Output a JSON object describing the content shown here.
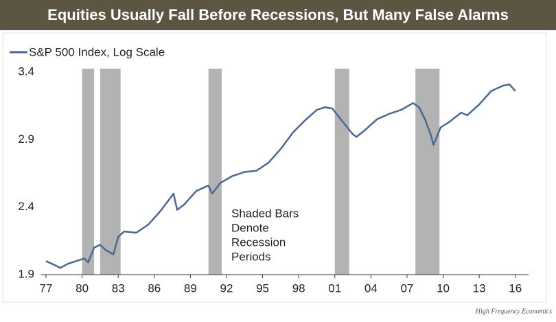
{
  "chart_data": {
    "type": "line",
    "title": "Equities Usually Fall Before Recessions, But Many False Alarms",
    "source": "High Frequency Economics",
    "annotation": [
      "Shaded Bars",
      "Denote",
      "Recession",
      "Periods"
    ],
    "recessions": [
      [
        1980.0,
        1981.0
      ],
      [
        1981.5,
        1983.2
      ],
      [
        1990.5,
        1991.6
      ],
      [
        2001.0,
        2002.2
      ],
      [
        2007.7,
        2009.7
      ]
    ],
    "recession_color": "#b3b3b3",
    "x": [
      1977.0,
      1977.5,
      1978.2,
      1978.8,
      1979.5,
      1980.2,
      1980.5,
      1981.0,
      1981.5,
      1982.0,
      1982.6,
      1983.0,
      1983.5,
      1984.5,
      1985.5,
      1986.5,
      1987.6,
      1987.9,
      1988.5,
      1989.5,
      1990.5,
      1990.8,
      1991.5,
      1992.5,
      1993.5,
      1994.5,
      1995.5,
      1996.5,
      1997.5,
      1998.5,
      1999.5,
      2000.2,
      2000.8,
      2001.5,
      2002.5,
      2002.8,
      2003.5,
      2004.5,
      2005.5,
      2006.5,
      2007.5,
      2008.0,
      2008.5,
      2009.0,
      2009.2,
      2009.8,
      2010.5,
      2011.5,
      2012.0,
      2013.0,
      2014.0,
      2015.0,
      2015.5,
      2016.0
    ],
    "series": [
      {
        "name": "S&P 500 Index, Log Scale",
        "color": "#4a6890",
        "values": [
          2.0,
          1.98,
          1.95,
          1.98,
          2.0,
          2.02,
          1.99,
          2.1,
          2.12,
          2.08,
          2.05,
          2.18,
          2.22,
          2.21,
          2.27,
          2.37,
          2.5,
          2.38,
          2.42,
          2.52,
          2.56,
          2.5,
          2.58,
          2.63,
          2.66,
          2.67,
          2.73,
          2.83,
          2.95,
          3.04,
          3.12,
          3.14,
          3.13,
          3.05,
          2.94,
          2.92,
          2.97,
          3.05,
          3.09,
          3.12,
          3.17,
          3.14,
          3.05,
          2.93,
          2.86,
          2.99,
          3.03,
          3.1,
          3.08,
          3.16,
          3.26,
          3.3,
          3.31,
          3.26
        ]
      }
    ],
    "xlim": [
      1976.6,
      2017.1
    ],
    "xticks": [
      {
        "value": 1977,
        "label": "77"
      },
      {
        "value": 1980,
        "label": "80"
      },
      {
        "value": 1983,
        "label": "83"
      },
      {
        "value": 1986,
        "label": "86"
      },
      {
        "value": 1989,
        "label": "89"
      },
      {
        "value": 1992,
        "label": "92"
      },
      {
        "value": 1995,
        "label": "95"
      },
      {
        "value": 1998,
        "label": "98"
      },
      {
        "value": 2001,
        "label": "01"
      },
      {
        "value": 2004,
        "label": "04"
      },
      {
        "value": 2007,
        "label": "07"
      },
      {
        "value": 2010,
        "label": "10"
      },
      {
        "value": 2013,
        "label": "13"
      },
      {
        "value": 2016,
        "label": "16"
      }
    ],
    "ylim": [
      1.9,
      3.4
    ],
    "yticks": [
      1.9,
      2.4,
      2.9,
      3.4
    ],
    "grid": false
  }
}
